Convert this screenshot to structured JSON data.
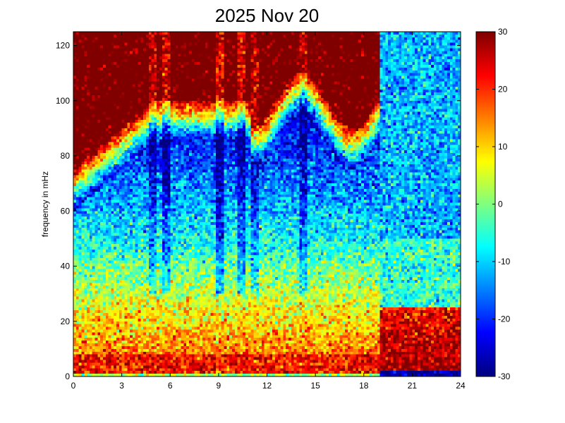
{
  "chart_data": {
    "type": "heatmap",
    "title": "2025 Nov 20",
    "xlabel": "",
    "ylabel": "frequency in mHz",
    "xlim": [
      0,
      24
    ],
    "ylim": [
      0,
      125
    ],
    "xticks": [
      0,
      3,
      6,
      9,
      12,
      15,
      18,
      21,
      24
    ],
    "xtick_labels": [
      "0",
      "3",
      "6",
      "9",
      "12",
      "15",
      "18",
      "21",
      "24"
    ],
    "yticks": [
      0,
      20,
      40,
      60,
      80,
      100,
      120
    ],
    "ytick_labels": [
      "0",
      "20",
      "40",
      "60",
      "80",
      "100",
      "120"
    ],
    "colorbar": {
      "clim": [
        -30,
        30
      ],
      "ticks": [
        -30,
        -20,
        -10,
        0,
        10,
        20,
        30
      ],
      "tick_labels": [
        "-30",
        "-20",
        "-10",
        "0",
        "10",
        "20",
        "30"
      ],
      "colormap": "jet"
    },
    "grid": false,
    "description_of_field": "power level (dB-like units) vs time of day (hours) and frequency (mHz)",
    "resolution": {
      "time_bins": 144,
      "freq_bins": 125
    },
    "regimes": [
      {
        "t_start": 0,
        "t_end": 19,
        "saturation_onset_mHz_start": 60,
        "saturation_onset_mHz_peak": 85,
        "low_freq_level": 22,
        "mid_freq_level": 5,
        "high_freq_level": 30
      },
      {
        "t_start": 19,
        "t_end": 24,
        "low_freq_level": 30,
        "mid_freq_level": -5,
        "high_freq_level": -12
      }
    ],
    "streaks": [
      {
        "t": 4.9,
        "level_boost": -8
      },
      {
        "t": 5.7,
        "level_boost": -10
      },
      {
        "t": 9.1,
        "level_boost": -12
      },
      {
        "t": 10.4,
        "level_boost": -10
      },
      {
        "t": 11.3,
        "level_boost": -8
      },
      {
        "t": 14.3,
        "level_boost": -8
      }
    ],
    "noise_seed": 20251120
  }
}
